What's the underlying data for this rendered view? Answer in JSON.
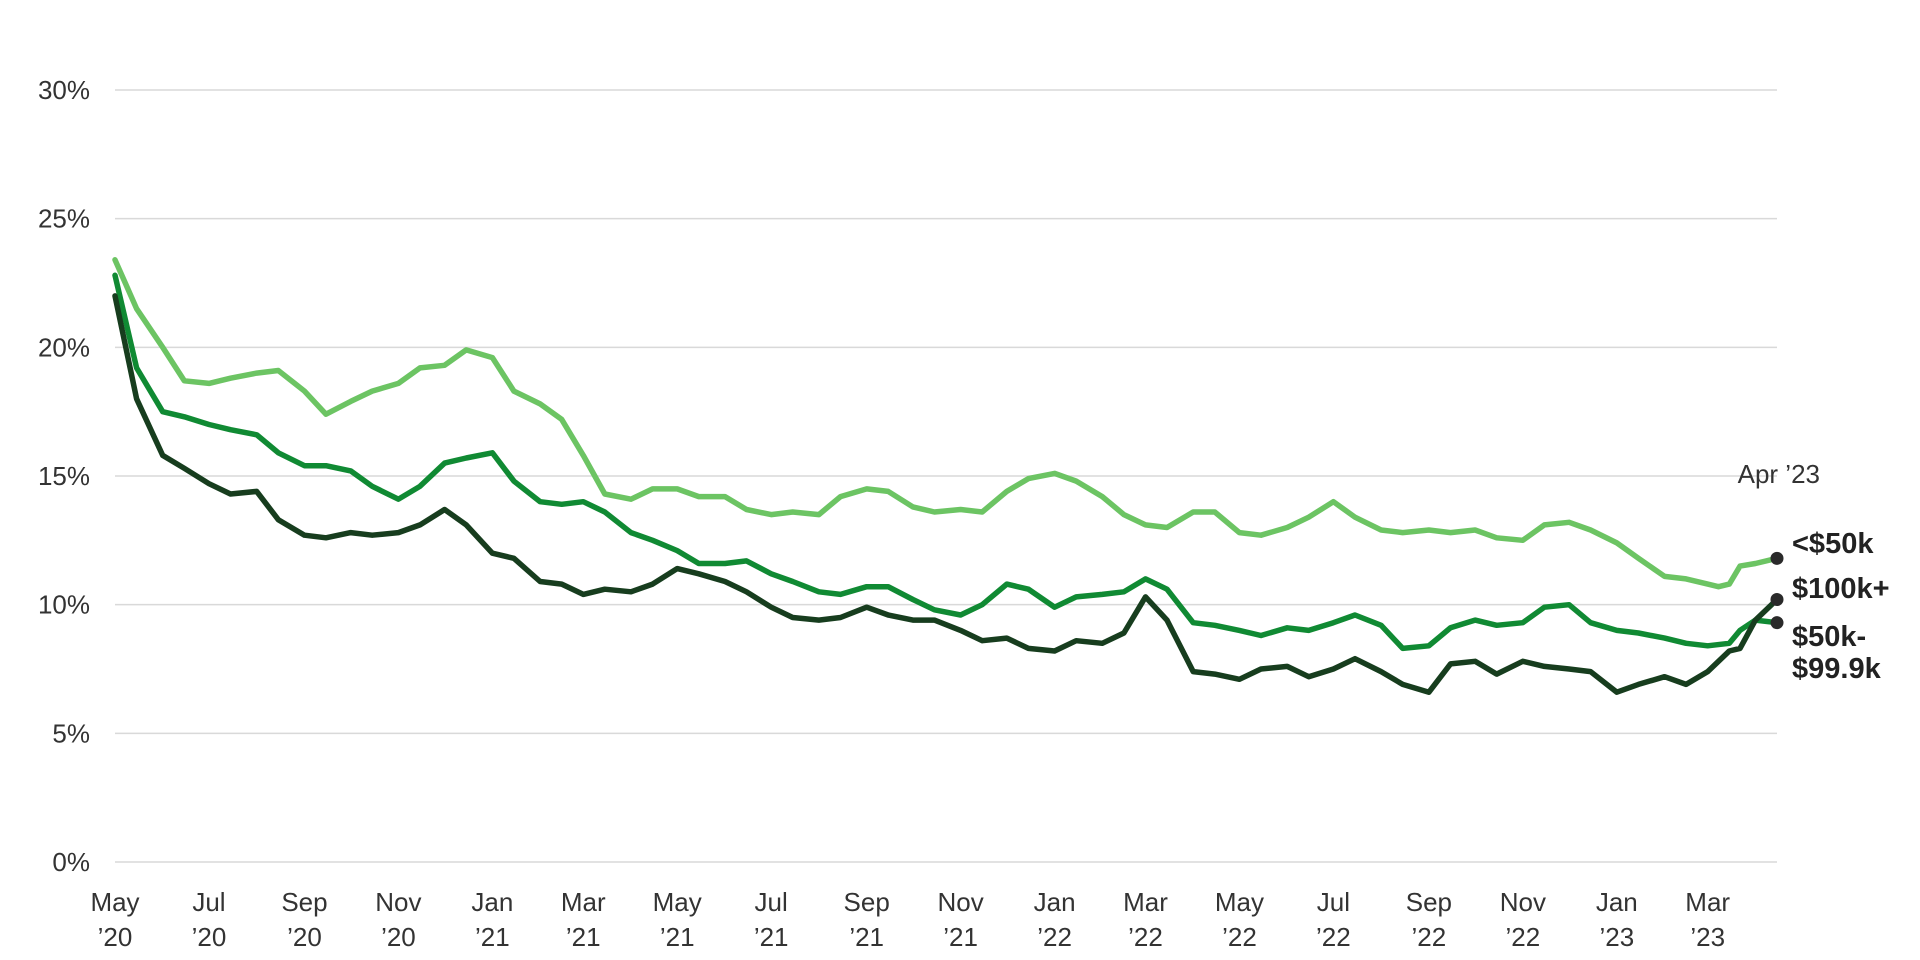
{
  "chart_data": {
    "type": "line",
    "title": "",
    "xlabel": "",
    "ylabel": "",
    "ylim": [
      0,
      30
    ],
    "y_ticks": [
      "0%",
      "5%",
      "10%",
      "15%",
      "20%",
      "25%",
      "30%"
    ],
    "y_tick_values": [
      0,
      5,
      10,
      15,
      20,
      25,
      30
    ],
    "x_range": [
      "2020-05-01",
      "2023-04-15"
    ],
    "x_ticks": [
      {
        "date": "2020-05-01",
        "line1": "May",
        "line2": "’20"
      },
      {
        "date": "2020-07-01",
        "line1": "Jul",
        "line2": "’20"
      },
      {
        "date": "2020-09-01",
        "line1": "Sep",
        "line2": "’20"
      },
      {
        "date": "2020-11-01",
        "line1": "Nov",
        "line2": "’20"
      },
      {
        "date": "2021-01-01",
        "line1": "Jan",
        "line2": "’21"
      },
      {
        "date": "2021-03-01",
        "line1": "Mar",
        "line2": "’21"
      },
      {
        "date": "2021-05-01",
        "line1": "May",
        "line2": "’21"
      },
      {
        "date": "2021-07-01",
        "line1": "Jul",
        "line2": "’21"
      },
      {
        "date": "2021-09-01",
        "line1": "Sep",
        "line2": "’21"
      },
      {
        "date": "2021-11-01",
        "line1": "Nov",
        "line2": "’21"
      },
      {
        "date": "2022-01-01",
        "line1": "Jan",
        "line2": "’22"
      },
      {
        "date": "2022-03-01",
        "line1": "Mar",
        "line2": "’22"
      },
      {
        "date": "2022-05-01",
        "line1": "May",
        "line2": "’22"
      },
      {
        "date": "2022-07-01",
        "line1": "Jul",
        "line2": "’22"
      },
      {
        "date": "2022-09-01",
        "line1": "Sep",
        "line2": "’22"
      },
      {
        "date": "2022-11-01",
        "line1": "Nov",
        "line2": "’22"
      },
      {
        "date": "2023-01-01",
        "line1": "Jan",
        "line2": "’23"
      },
      {
        "date": "2023-03-01",
        "line1": "Mar",
        "line2": "’23"
      }
    ],
    "grid": true,
    "annotation": "Apr ’23",
    "legend": "direct labels at right end of lines",
    "series": [
      {
        "name": "<$50k",
        "label_lines": [
          "<$50k"
        ],
        "color": "#6cc463",
        "points": [
          [
            "2020-05-01",
            23.4
          ],
          [
            "2020-05-15",
            21.5
          ],
          [
            "2020-06-01",
            20.0
          ],
          [
            "2020-06-15",
            18.7
          ],
          [
            "2020-07-01",
            18.6
          ],
          [
            "2020-07-15",
            18.8
          ],
          [
            "2020-08-01",
            19.0
          ],
          [
            "2020-08-15",
            19.1
          ],
          [
            "2020-09-01",
            18.3
          ],
          [
            "2020-09-15",
            17.4
          ],
          [
            "2020-10-01",
            17.9
          ],
          [
            "2020-10-15",
            18.3
          ],
          [
            "2020-11-01",
            18.6
          ],
          [
            "2020-11-15",
            19.2
          ],
          [
            "2020-12-01",
            19.3
          ],
          [
            "2020-12-15",
            19.9
          ],
          [
            "2021-01-01",
            19.6
          ],
          [
            "2021-01-15",
            18.3
          ],
          [
            "2021-02-01",
            17.8
          ],
          [
            "2021-02-15",
            17.2
          ],
          [
            "2021-03-01",
            15.8
          ],
          [
            "2021-03-15",
            14.3
          ],
          [
            "2021-04-01",
            14.1
          ],
          [
            "2021-04-15",
            14.5
          ],
          [
            "2021-05-01",
            14.5
          ],
          [
            "2021-05-15",
            14.2
          ],
          [
            "2021-06-01",
            14.2
          ],
          [
            "2021-06-15",
            13.7
          ],
          [
            "2021-07-01",
            13.5
          ],
          [
            "2021-07-15",
            13.6
          ],
          [
            "2021-08-01",
            13.5
          ],
          [
            "2021-08-15",
            14.2
          ],
          [
            "2021-09-01",
            14.5
          ],
          [
            "2021-09-15",
            14.4
          ],
          [
            "2021-10-01",
            13.8
          ],
          [
            "2021-10-15",
            13.6
          ],
          [
            "2021-11-01",
            13.7
          ],
          [
            "2021-11-15",
            13.6
          ],
          [
            "2021-12-01",
            14.4
          ],
          [
            "2021-12-15",
            14.9
          ],
          [
            "2022-01-01",
            15.1
          ],
          [
            "2022-01-15",
            14.8
          ],
          [
            "2022-02-01",
            14.2
          ],
          [
            "2022-02-15",
            13.5
          ],
          [
            "2022-03-01",
            13.1
          ],
          [
            "2022-03-15",
            13.0
          ],
          [
            "2022-04-01",
            13.6
          ],
          [
            "2022-04-15",
            13.6
          ],
          [
            "2022-05-01",
            12.8
          ],
          [
            "2022-05-15",
            12.7
          ],
          [
            "2022-06-01",
            13.0
          ],
          [
            "2022-06-15",
            13.4
          ],
          [
            "2022-07-01",
            14.0
          ],
          [
            "2022-07-15",
            13.4
          ],
          [
            "2022-08-01",
            12.9
          ],
          [
            "2022-08-15",
            12.8
          ],
          [
            "2022-09-01",
            12.9
          ],
          [
            "2022-09-15",
            12.8
          ],
          [
            "2022-10-01",
            12.9
          ],
          [
            "2022-10-15",
            12.6
          ],
          [
            "2022-11-01",
            12.5
          ],
          [
            "2022-11-15",
            13.1
          ],
          [
            "2022-12-01",
            13.2
          ],
          [
            "2022-12-15",
            12.9
          ],
          [
            "2023-01-01",
            12.4
          ],
          [
            "2023-01-15",
            11.8
          ],
          [
            "2023-02-01",
            11.1
          ],
          [
            "2023-02-15",
            11.0
          ],
          [
            "2023-03-01",
            10.8
          ],
          [
            "2023-03-08",
            10.7
          ],
          [
            "2023-03-15",
            10.8
          ],
          [
            "2023-03-22",
            11.5
          ],
          [
            "2023-04-01",
            11.6
          ],
          [
            "2023-04-15",
            11.8
          ]
        ]
      },
      {
        "name": "$50k-$99.9k",
        "label_lines": [
          "$50k-",
          "$99.9k"
        ],
        "color": "#108a33",
        "points": [
          [
            "2020-05-01",
            22.8
          ],
          [
            "2020-05-15",
            19.2
          ],
          [
            "2020-06-01",
            17.5
          ],
          [
            "2020-06-15",
            17.3
          ],
          [
            "2020-07-01",
            17.0
          ],
          [
            "2020-07-15",
            16.8
          ],
          [
            "2020-08-01",
            16.6
          ],
          [
            "2020-08-15",
            15.9
          ],
          [
            "2020-09-01",
            15.4
          ],
          [
            "2020-09-15",
            15.4
          ],
          [
            "2020-10-01",
            15.2
          ],
          [
            "2020-10-15",
            14.6
          ],
          [
            "2020-11-01",
            14.1
          ],
          [
            "2020-11-15",
            14.6
          ],
          [
            "2020-12-01",
            15.5
          ],
          [
            "2020-12-15",
            15.7
          ],
          [
            "2021-01-01",
            15.9
          ],
          [
            "2021-01-15",
            14.8
          ],
          [
            "2021-02-01",
            14.0
          ],
          [
            "2021-02-15",
            13.9
          ],
          [
            "2021-03-01",
            14.0
          ],
          [
            "2021-03-15",
            13.6
          ],
          [
            "2021-04-01",
            12.8
          ],
          [
            "2021-04-15",
            12.5
          ],
          [
            "2021-05-01",
            12.1
          ],
          [
            "2021-05-15",
            11.6
          ],
          [
            "2021-06-01",
            11.6
          ],
          [
            "2021-06-15",
            11.7
          ],
          [
            "2021-07-01",
            11.2
          ],
          [
            "2021-07-15",
            10.9
          ],
          [
            "2021-08-01",
            10.5
          ],
          [
            "2021-08-15",
            10.4
          ],
          [
            "2021-09-01",
            10.7
          ],
          [
            "2021-09-15",
            10.7
          ],
          [
            "2021-10-01",
            10.2
          ],
          [
            "2021-10-15",
            9.8
          ],
          [
            "2021-11-01",
            9.6
          ],
          [
            "2021-11-15",
            10.0
          ],
          [
            "2021-12-01",
            10.8
          ],
          [
            "2021-12-15",
            10.6
          ],
          [
            "2022-01-01",
            9.9
          ],
          [
            "2022-01-15",
            10.3
          ],
          [
            "2022-02-01",
            10.4
          ],
          [
            "2022-02-15",
            10.5
          ],
          [
            "2022-03-01",
            11.0
          ],
          [
            "2022-03-15",
            10.6
          ],
          [
            "2022-04-01",
            9.3
          ],
          [
            "2022-04-15",
            9.2
          ],
          [
            "2022-05-01",
            9.0
          ],
          [
            "2022-05-15",
            8.8
          ],
          [
            "2022-06-01",
            9.1
          ],
          [
            "2022-06-15",
            9.0
          ],
          [
            "2022-07-01",
            9.3
          ],
          [
            "2022-07-15",
            9.6
          ],
          [
            "2022-08-01",
            9.2
          ],
          [
            "2022-08-15",
            8.3
          ],
          [
            "2022-09-01",
            8.4
          ],
          [
            "2022-09-15",
            9.1
          ],
          [
            "2022-10-01",
            9.4
          ],
          [
            "2022-10-15",
            9.2
          ],
          [
            "2022-11-01",
            9.3
          ],
          [
            "2022-11-15",
            9.9
          ],
          [
            "2022-12-01",
            10.0
          ],
          [
            "2022-12-15",
            9.3
          ],
          [
            "2023-01-01",
            9.0
          ],
          [
            "2023-01-15",
            8.9
          ],
          [
            "2023-02-01",
            8.7
          ],
          [
            "2023-02-15",
            8.5
          ],
          [
            "2023-03-01",
            8.4
          ],
          [
            "2023-03-15",
            8.5
          ],
          [
            "2023-03-22",
            9.0
          ],
          [
            "2023-04-01",
            9.4
          ],
          [
            "2023-04-15",
            9.3
          ]
        ]
      },
      {
        "name": "$100k+",
        "label_lines": [
          "$100k+"
        ],
        "color": "#173d1e",
        "points": [
          [
            "2020-05-01",
            22.0
          ],
          [
            "2020-05-15",
            18.0
          ],
          [
            "2020-06-01",
            15.8
          ],
          [
            "2020-06-15",
            15.3
          ],
          [
            "2020-07-01",
            14.7
          ],
          [
            "2020-07-15",
            14.3
          ],
          [
            "2020-08-01",
            14.4
          ],
          [
            "2020-08-15",
            13.3
          ],
          [
            "2020-09-01",
            12.7
          ],
          [
            "2020-09-15",
            12.6
          ],
          [
            "2020-10-01",
            12.8
          ],
          [
            "2020-10-15",
            12.7
          ],
          [
            "2020-11-01",
            12.8
          ],
          [
            "2020-11-15",
            13.1
          ],
          [
            "2020-12-01",
            13.7
          ],
          [
            "2020-12-15",
            13.1
          ],
          [
            "2021-01-01",
            12.0
          ],
          [
            "2021-01-15",
            11.8
          ],
          [
            "2021-02-01",
            10.9
          ],
          [
            "2021-02-15",
            10.8
          ],
          [
            "2021-03-01",
            10.4
          ],
          [
            "2021-03-15",
            10.6
          ],
          [
            "2021-04-01",
            10.5
          ],
          [
            "2021-04-15",
            10.8
          ],
          [
            "2021-05-01",
            11.4
          ],
          [
            "2021-05-15",
            11.2
          ],
          [
            "2021-06-01",
            10.9
          ],
          [
            "2021-06-15",
            10.5
          ],
          [
            "2021-07-01",
            9.9
          ],
          [
            "2021-07-15",
            9.5
          ],
          [
            "2021-08-01",
            9.4
          ],
          [
            "2021-08-15",
            9.5
          ],
          [
            "2021-09-01",
            9.9
          ],
          [
            "2021-09-15",
            9.6
          ],
          [
            "2021-10-01",
            9.4
          ],
          [
            "2021-10-15",
            9.4
          ],
          [
            "2021-11-01",
            9.0
          ],
          [
            "2021-11-15",
            8.6
          ],
          [
            "2021-12-01",
            8.7
          ],
          [
            "2021-12-15",
            8.3
          ],
          [
            "2022-01-01",
            8.2
          ],
          [
            "2022-01-15",
            8.6
          ],
          [
            "2022-02-01",
            8.5
          ],
          [
            "2022-02-15",
            8.9
          ],
          [
            "2022-03-01",
            10.3
          ],
          [
            "2022-03-15",
            9.4
          ],
          [
            "2022-04-01",
            7.4
          ],
          [
            "2022-04-15",
            7.3
          ],
          [
            "2022-05-01",
            7.1
          ],
          [
            "2022-05-15",
            7.5
          ],
          [
            "2022-06-01",
            7.6
          ],
          [
            "2022-06-15",
            7.2
          ],
          [
            "2022-07-01",
            7.5
          ],
          [
            "2022-07-15",
            7.9
          ],
          [
            "2022-08-01",
            7.4
          ],
          [
            "2022-08-15",
            6.9
          ],
          [
            "2022-09-01",
            6.6
          ],
          [
            "2022-09-15",
            7.7
          ],
          [
            "2022-10-01",
            7.8
          ],
          [
            "2022-10-15",
            7.3
          ],
          [
            "2022-11-01",
            7.8
          ],
          [
            "2022-11-15",
            7.6
          ],
          [
            "2022-12-01",
            7.5
          ],
          [
            "2022-12-15",
            7.4
          ],
          [
            "2023-01-01",
            6.6
          ],
          [
            "2023-01-15",
            6.9
          ],
          [
            "2023-02-01",
            7.2
          ],
          [
            "2023-02-15",
            6.9
          ],
          [
            "2023-03-01",
            7.4
          ],
          [
            "2023-03-15",
            8.2
          ],
          [
            "2023-03-22",
            8.3
          ],
          [
            "2023-04-01",
            9.4
          ],
          [
            "2023-04-15",
            10.2
          ]
        ]
      }
    ]
  }
}
